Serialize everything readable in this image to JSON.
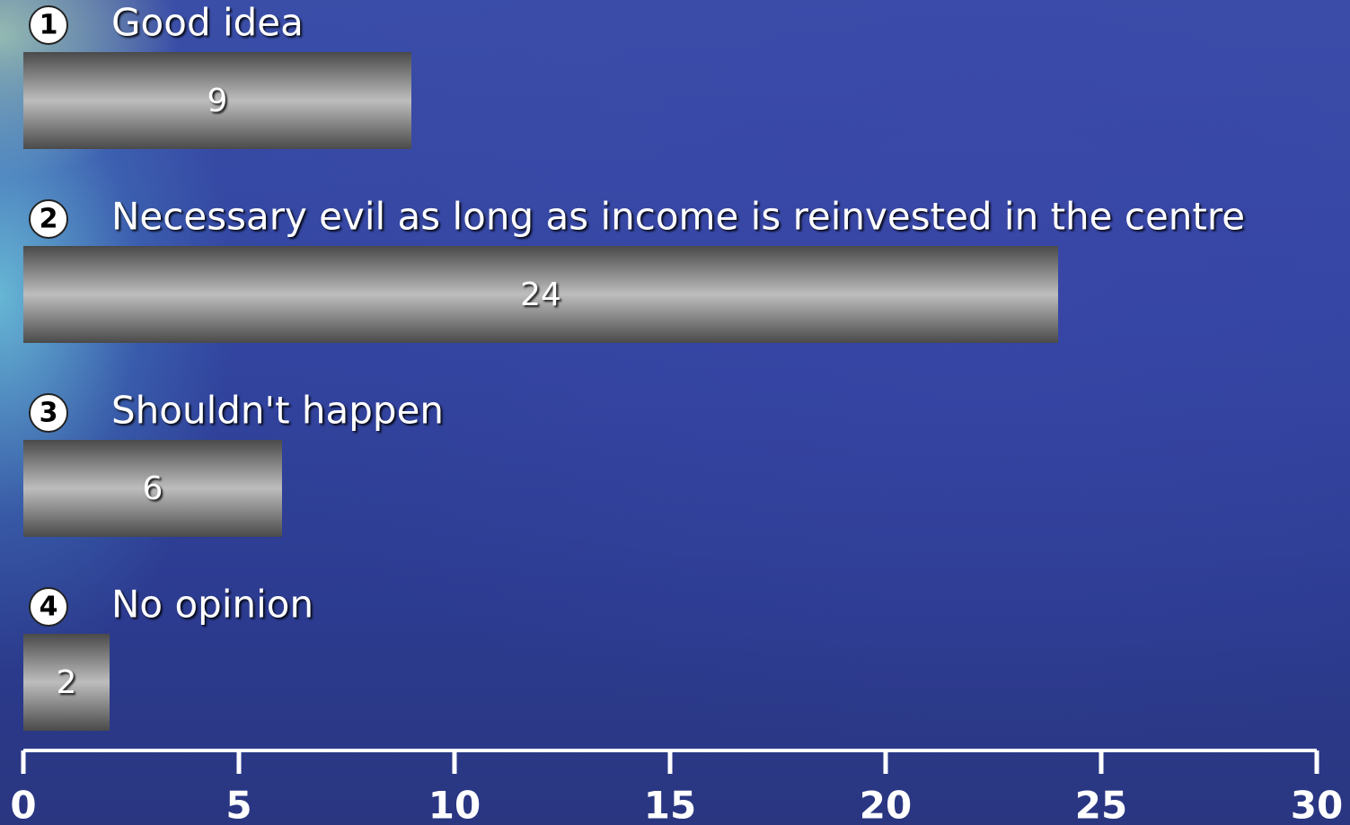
{
  "chart_data": {
    "type": "bar",
    "orientation": "horizontal",
    "option_numbers": [
      "1",
      "2",
      "3",
      "4"
    ],
    "categories": [
      "Good idea",
      "Necessary evil as long as income is reinvested in the centre",
      "Shouldn't happen",
      "No opinion"
    ],
    "values": [
      9,
      24,
      6,
      2
    ],
    "xlim": [
      0,
      30
    ],
    "xticks": [
      0,
      5,
      10,
      15,
      20,
      25,
      30
    ]
  }
}
